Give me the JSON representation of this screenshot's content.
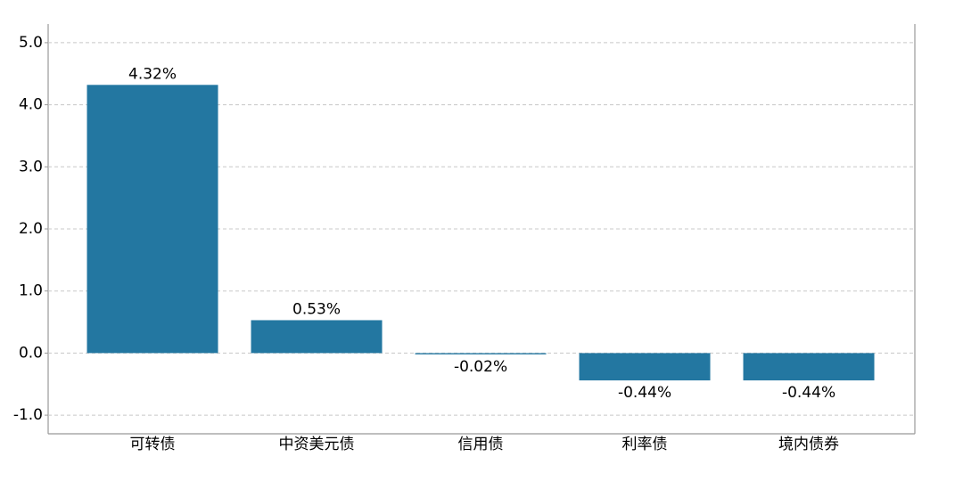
{
  "chart_data": {
    "type": "bar",
    "categories": [
      "可转债",
      "中资美元债",
      "信用债",
      "利率债",
      "境内债券"
    ],
    "values": [
      4.32,
      0.53,
      -0.02,
      -0.44,
      -0.44
    ],
    "value_labels": [
      "4.32%",
      "0.53%",
      "-0.02%",
      "-0.44%",
      "-0.44%"
    ],
    "color": "#2377a1",
    "ylim": [
      -1.3,
      5.3
    ],
    "yticks": [
      {
        "value": -1,
        "label": "-1.0"
      },
      {
        "value": 0,
        "label": "0.0"
      },
      {
        "value": 1,
        "label": "1.0"
      },
      {
        "value": 2,
        "label": "2.0"
      },
      {
        "value": 3,
        "label": "3.0"
      },
      {
        "value": 4,
        "label": "4.0"
      },
      {
        "value": 5,
        "label": "5.0"
      }
    ],
    "grid": true
  }
}
